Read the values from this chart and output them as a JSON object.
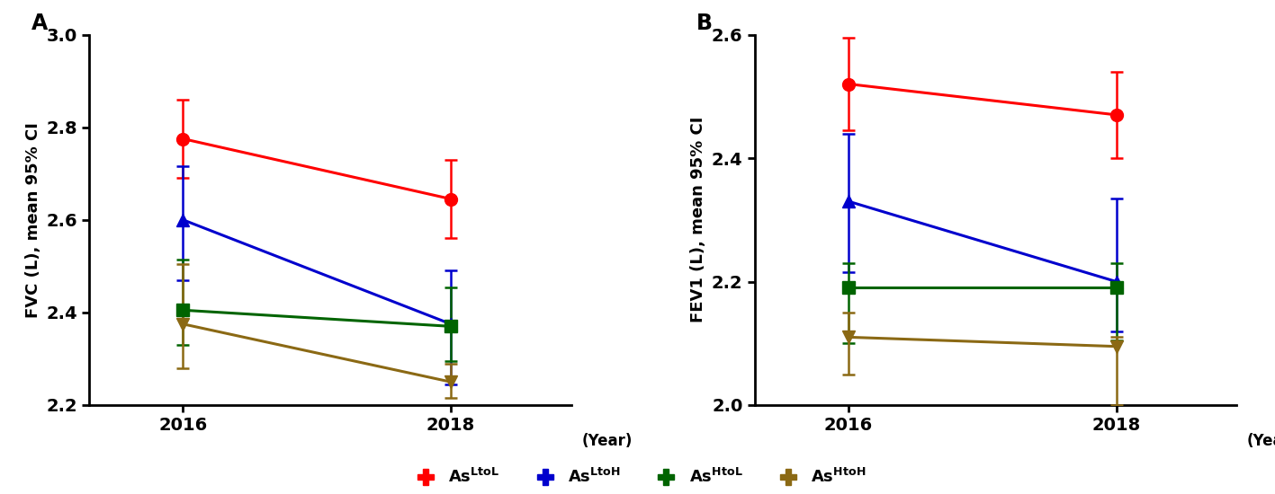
{
  "panel_A": {
    "title": "A",
    "ylabel": "FVC (L), mean 95% CI",
    "xlabel": "(Year)",
    "ylim": [
      2.2,
      3.0
    ],
    "yticks": [
      2.2,
      2.4,
      2.6,
      2.8,
      3.0
    ],
    "xticks": [
      2016,
      2018
    ],
    "xlim": [
      2015.3,
      2018.9
    ],
    "series": [
      {
        "label": "AsLtoL",
        "color": "#FF0000",
        "marker": "o",
        "x": [
          2016,
          2018
        ],
        "y": [
          2.775,
          2.645
        ],
        "yerr_low": [
          0.085,
          0.085
        ],
        "yerr_high": [
          0.085,
          0.085
        ]
      },
      {
        "label": "AsLtoH",
        "color": "#0000CD",
        "marker": "^",
        "x": [
          2016,
          2018
        ],
        "y": [
          2.6,
          2.375
        ],
        "yerr_low": [
          0.13,
          0.13
        ],
        "yerr_high": [
          0.115,
          0.115
        ]
      },
      {
        "label": "AsHtoL",
        "color": "#006400",
        "marker": "s",
        "x": [
          2016,
          2018
        ],
        "y": [
          2.405,
          2.37
        ],
        "yerr_low": [
          0.075,
          0.075
        ],
        "yerr_high": [
          0.11,
          0.085
        ]
      },
      {
        "label": "AsHtoH",
        "color": "#8B6914",
        "marker": "v",
        "x": [
          2016,
          2018
        ],
        "y": [
          2.375,
          2.25
        ],
        "yerr_low": [
          0.095,
          0.035
        ],
        "yerr_high": [
          0.13,
          0.04
        ]
      }
    ]
  },
  "panel_B": {
    "title": "B",
    "ylabel": "FEV1 (L), mean 95% CI",
    "xlabel": "(Year)",
    "ylim": [
      2.0,
      2.6
    ],
    "yticks": [
      2.0,
      2.2,
      2.4,
      2.6
    ],
    "xticks": [
      2016,
      2018
    ],
    "xlim": [
      2015.3,
      2018.9
    ],
    "series": [
      {
        "label": "AsLtoL",
        "color": "#FF0000",
        "marker": "o",
        "x": [
          2016,
          2018
        ],
        "y": [
          2.52,
          2.47
        ],
        "yerr_low": [
          0.075,
          0.07
        ],
        "yerr_high": [
          0.075,
          0.07
        ]
      },
      {
        "label": "AsLtoH",
        "color": "#0000CD",
        "marker": "^",
        "x": [
          2016,
          2018
        ],
        "y": [
          2.33,
          2.2
        ],
        "yerr_low": [
          0.115,
          0.08
        ],
        "yerr_high": [
          0.11,
          0.135
        ]
      },
      {
        "label": "AsHtoL",
        "color": "#006400",
        "marker": "s",
        "x": [
          2016,
          2018
        ],
        "y": [
          2.19,
          2.19
        ],
        "yerr_low": [
          0.09,
          0.085
        ],
        "yerr_high": [
          0.04,
          0.04
        ]
      },
      {
        "label": "AsHtoH",
        "color": "#8B6914",
        "marker": "v",
        "x": [
          2016,
          2018
        ],
        "y": [
          2.11,
          2.095
        ],
        "yerr_low": [
          0.06,
          0.095
        ],
        "yerr_high": [
          0.04,
          0.015
        ]
      }
    ]
  },
  "legend": [
    {
      "label": "AsLtoL",
      "text": "As",
      "sup": "LtoL",
      "color": "#FF0000",
      "marker": "o"
    },
    {
      "label": "AsLtoH",
      "text": "As",
      "sup": "LtoH",
      "color": "#0000CD",
      "marker": "^"
    },
    {
      "label": "AsHtoL",
      "text": "As",
      "sup": "HtoL",
      "color": "#006400",
      "marker": "s"
    },
    {
      "label": "AsHtoH",
      "text": "As",
      "sup": "HtoH",
      "color": "#8B6914",
      "marker": "v"
    }
  ],
  "background_color": "#FFFFFF",
  "markersize": 10,
  "linewidth": 2.2,
  "capsize": 5,
  "elinewidth": 1.8,
  "capthick": 1.8
}
